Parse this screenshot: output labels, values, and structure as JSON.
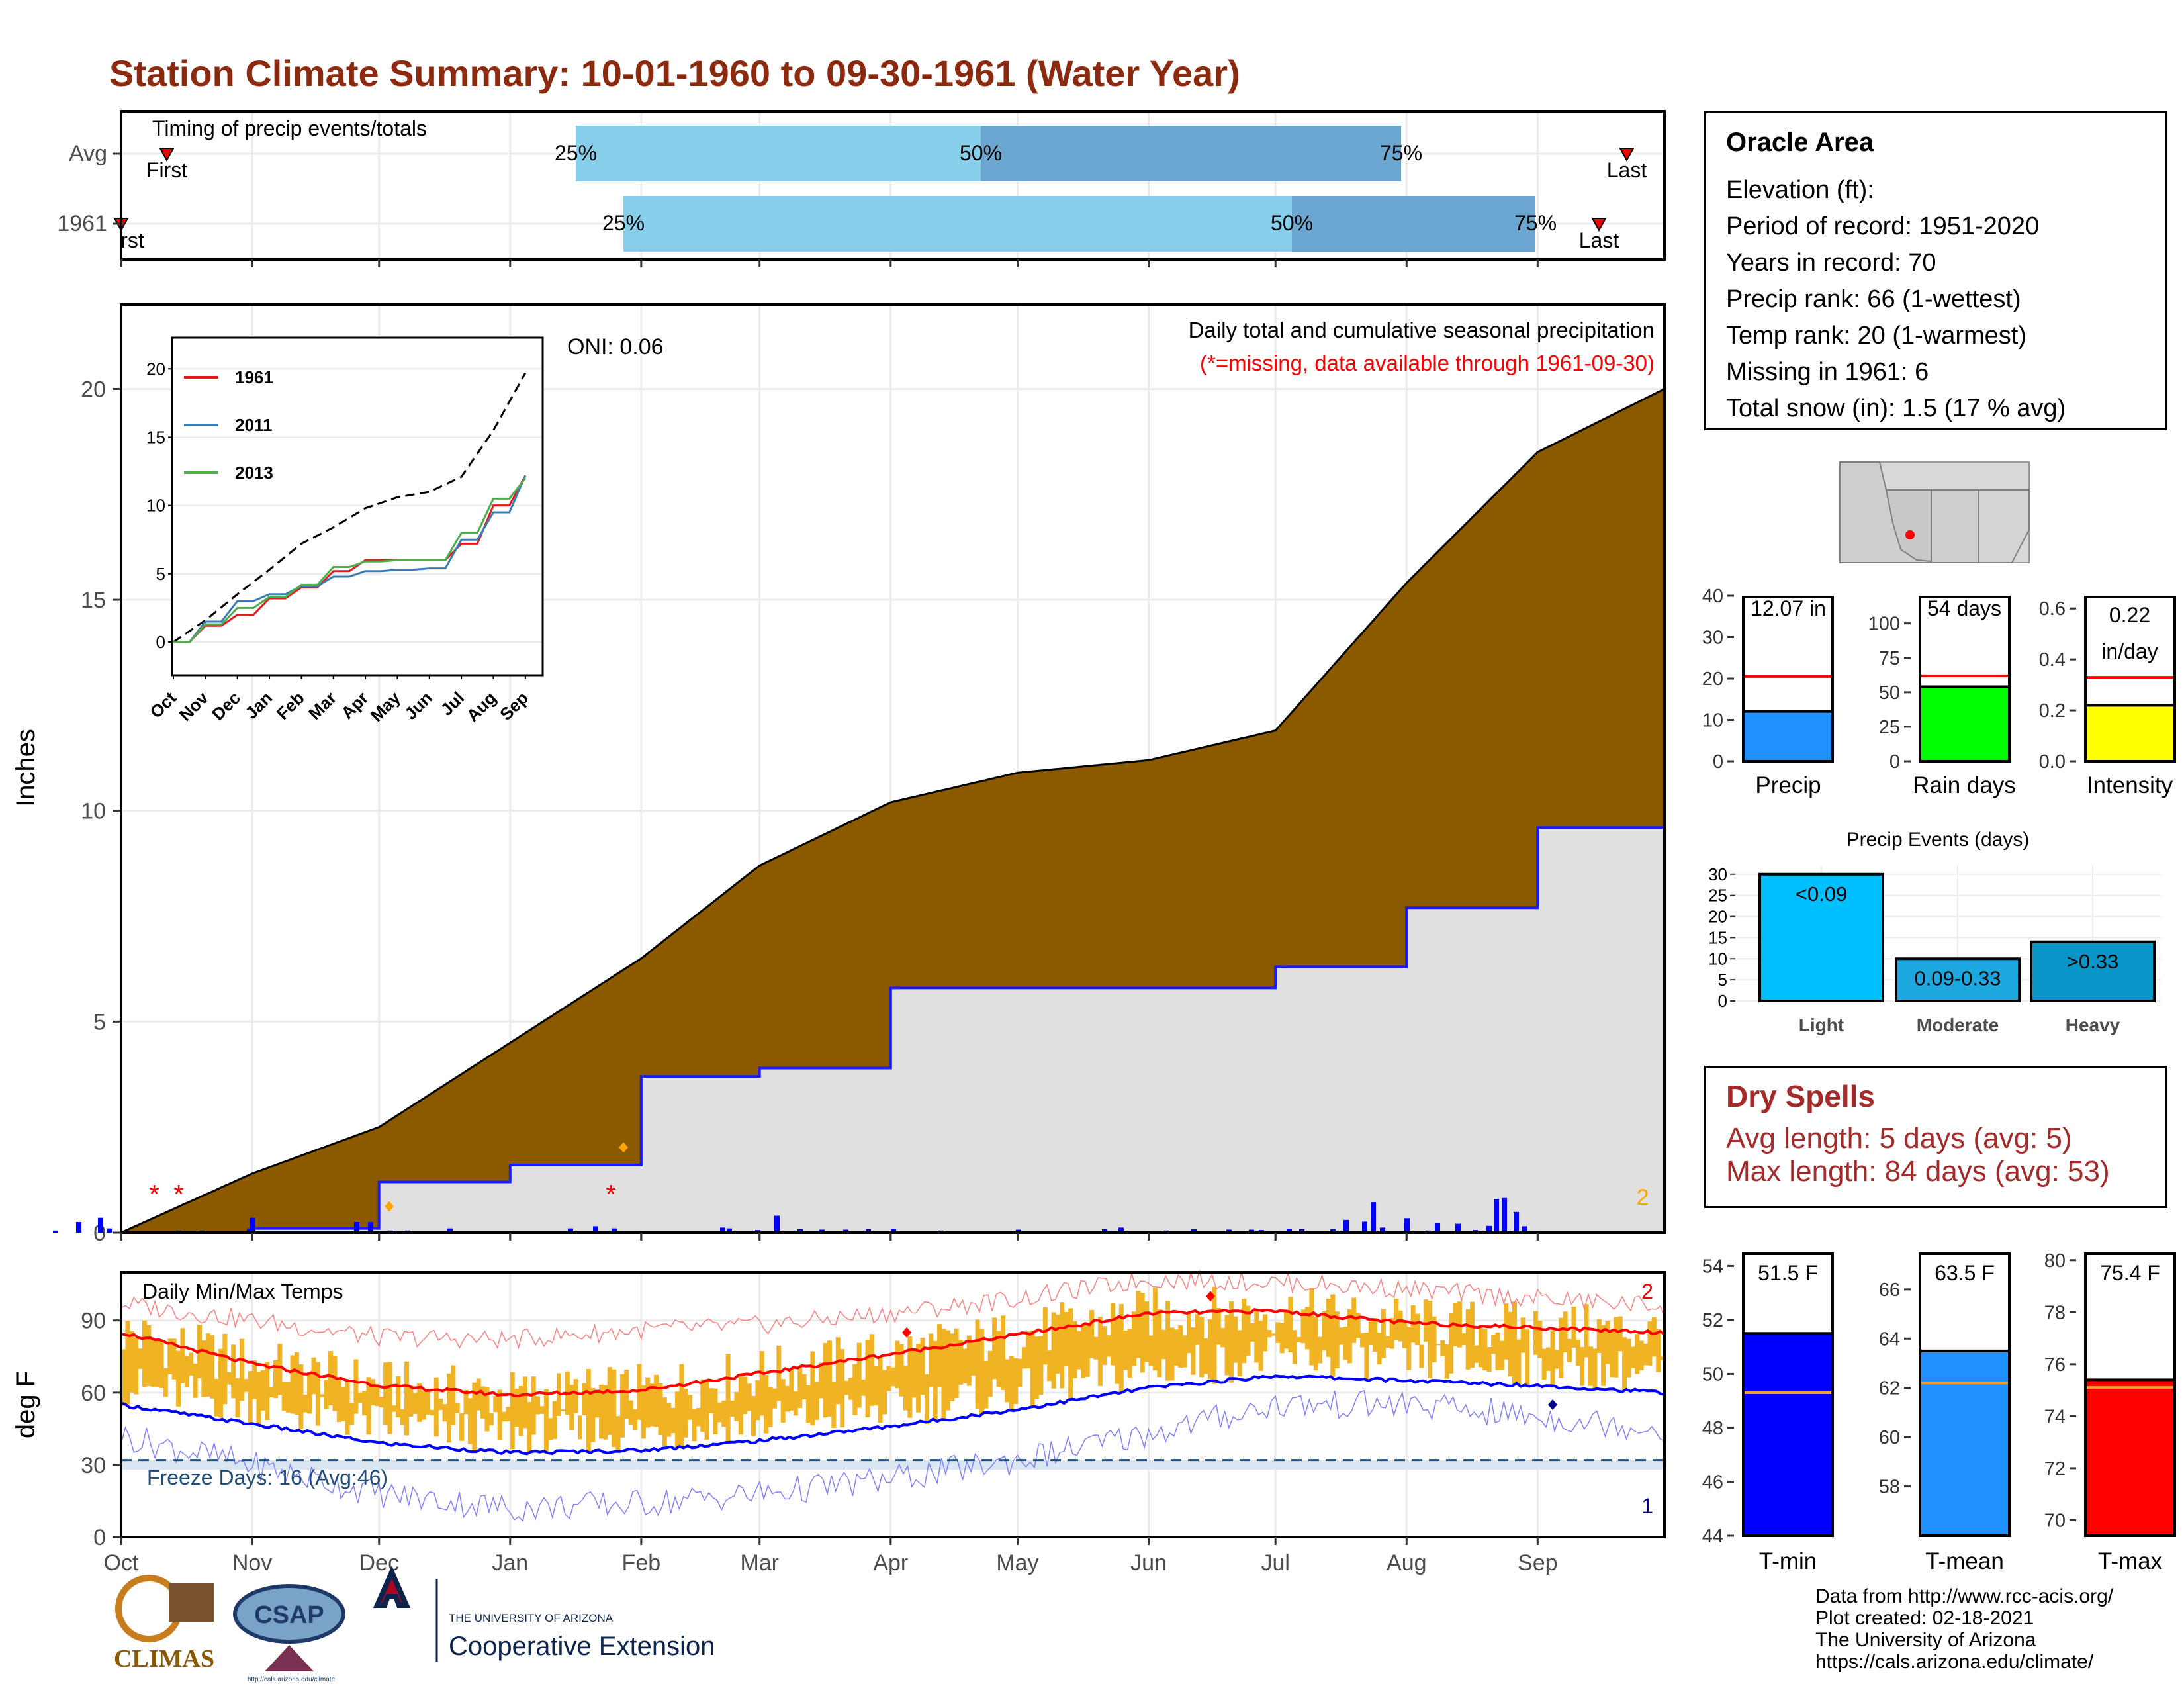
{
  "header": {
    "title": "Station Climate Summary: 10-01-1960 to 09-30-1961 (Water Year)"
  },
  "colors": {
    "title": "#8b2a0e",
    "cum_fill": "#8b5a00",
    "avg_cum_line": "#1a1aff",
    "light_fill": "#e0e0e0",
    "tmax_line": "#ff0000",
    "tmin_line": "#0000ff",
    "bars": "#f0b323",
    "dry_spell_text": "#a52a2a"
  },
  "timing_panel": {
    "title": "Timing of precip events/totals",
    "rows": [
      "Avg",
      "1961"
    ],
    "avg": {
      "first": "First",
      "last": "Last",
      "p25": "25%",
      "p50": "50%",
      "p75": "75%"
    },
    "year": {
      "first": "rst",
      "last": "Last",
      "p25": "25%",
      "p50": "50%",
      "p75": "75%"
    }
  },
  "precip_panel": {
    "ylabel": "Inches",
    "yticks": [
      "0",
      "5",
      "10",
      "15",
      "20"
    ],
    "oni": "ONI: 0.06",
    "caption": "Daily total and cumulative seasonal precipitation",
    "missing_note": "(*=missing, data available through 1961-09-30)",
    "corner_count": "2"
  },
  "inset": {
    "legend": [
      "1961",
      "2011",
      "2013"
    ],
    "yticks": [
      "0",
      "5",
      "10",
      "15",
      "20"
    ],
    "xticks": [
      "Oct",
      "Nov",
      "Dec",
      "Jan",
      "Feb",
      "Mar",
      "Apr",
      "May",
      "Jun",
      "Jul",
      "Aug",
      "Sep"
    ]
  },
  "temp_panel": {
    "ylabel": "deg F",
    "title": "Daily Min/Max Temps",
    "yticks": [
      "0",
      "30",
      "60",
      "90"
    ],
    "freeze": "Freeze Days: 16 (Avg:46)",
    "count_top": "2",
    "count_bottom": "1"
  },
  "months": [
    "Oct",
    "Nov",
    "Dec",
    "Jan",
    "Feb",
    "Mar",
    "Apr",
    "May",
    "Jun",
    "Jul",
    "Aug",
    "Sep"
  ],
  "station": {
    "name": "Oracle Area",
    "lines": [
      "Elevation (ft):",
      "Period of record: 1951-2020",
      "Years in record: 70",
      "Precip rank: 66 (1-wettest)",
      "Temp rank: 20 (1-warmest)",
      "Missing in 1961: 6",
      "Total snow (in): 1.5 (17 % avg)"
    ]
  },
  "mini_bars": {
    "precip": {
      "label": "Precip",
      "value_text": "12.07 in",
      "value": 12.07,
      "avg": 20.5,
      "ymax": 40,
      "ticks": [
        "0",
        "10",
        "20",
        "30",
        "40"
      ],
      "color": "#1e90ff"
    },
    "rain_days": {
      "label": "Rain days",
      "value_text": "54 days",
      "value": 54,
      "avg": 62,
      "ymax": 120,
      "ticks": [
        "0",
        "25",
        "50",
        "75",
        "100"
      ],
      "color": "#00ff00"
    },
    "intensity": {
      "label": "Intensity",
      "value_text": "0.22",
      "value_text2": "in/day",
      "value": 0.22,
      "avg": 0.33,
      "ymax": 0.65,
      "ticks": [
        "0.0",
        "0.2",
        "0.4",
        "0.6"
      ],
      "color": "#ffff00"
    }
  },
  "events": {
    "title": "Precip Events (days)",
    "ticks": [
      "0",
      "5",
      "10",
      "15",
      "20",
      "25",
      "30"
    ],
    "categories": [
      "Light",
      "Moderate",
      "Heavy"
    ],
    "bar_labels": [
      "<0.09",
      "0.09-0.33",
      ">0.33"
    ],
    "values": [
      30,
      10,
      14
    ],
    "colors": [
      "#00bfff",
      "#1ea8e0",
      "#0a95c8"
    ]
  },
  "dry_spells": {
    "title": "Dry Spells",
    "avg_length": "Avg length: 5 days (avg: 5)",
    "max_length": "Max length: 84 days (avg: 53)"
  },
  "temp_bars": {
    "tmin": {
      "label": "T-min",
      "value_text": "51.5 F",
      "value": 51.5,
      "avg": 49.3,
      "ymin": 44,
      "ymax": 54.5,
      "ticks": [
        "44",
        "46",
        "48",
        "50",
        "52",
        "54"
      ],
      "color": "#0000ff"
    },
    "tmean": {
      "label": "T-mean",
      "value_text": "63.5 F",
      "value": 63.5,
      "avg": 62.2,
      "ymin": 56,
      "ymax": 67.5,
      "ticks": [
        "58",
        "60",
        "62",
        "64",
        "66"
      ],
      "color": "#1e90ff"
    },
    "tmax": {
      "label": "T-max",
      "value_text": "75.4 F",
      "value": 75.4,
      "avg": 75.1,
      "ymin": 69.4,
      "ymax": 80.3,
      "ticks": [
        "70",
        "72",
        "74",
        "76",
        "78",
        "80"
      ],
      "color": "#ff0000"
    }
  },
  "logos": {
    "climas": "CLIMAS",
    "csap": "CSAP",
    "csap_url": "http://cals.arizona.edu/climate",
    "ua_top": "THE UNIVERSITY OF ARIZONA",
    "ua_bottom": "Cooperative Extension"
  },
  "credits": [
    "Data from http://www.rcc-acis.org/",
    "Plot created: 02-18-2021",
    "The University of Arizona",
    "https://cals.arizona.edu/climate/"
  ],
  "chart_data": [
    {
      "type": "area",
      "title": "Daily total and cumulative seasonal precipitation",
      "ylabel": "Inches",
      "ylim": [
        0,
        22
      ],
      "x": [
        "Oct",
        "Nov",
        "Dec",
        "Jan",
        "Feb",
        "Mar",
        "Apr",
        "May",
        "Jun",
        "Jul",
        "Aug",
        "Sep",
        "Sep-30"
      ],
      "series": [
        {
          "values": [
            0.0,
            1.4,
            2.5,
            4.5,
            6.5,
            8.7,
            10.2,
            10.9,
            11.2,
            11.9,
            15.4,
            18.5,
            20.0
          ]
        },
        {
          "values": [
            0.0,
            0.1,
            1.2,
            1.6,
            3.7,
            3.9,
            5.8,
            5.8,
            5.8,
            6.3,
            7.7,
            9.6,
            12.07
          ]
        }
      ]
    },
    {
      "type": "line",
      "ylim": [
        0,
        22
      ],
      "x": [
        "Oct",
        "Nov",
        "Dec",
        "Jan",
        "Feb",
        "Mar",
        "Apr",
        "May",
        "Jun",
        "Jul",
        "Aug",
        "Sep"
      ],
      "series": [
        {
          "values": [
            0,
            1.6,
            3.5,
            5.3,
            7.2,
            8.4,
            9.8,
            10.6,
            11.0,
            12.1,
            15.5,
            19.7
          ]
        },
        {
          "name": "1961",
          "values": [
            0,
            1.2,
            2.0,
            3.2,
            4.0,
            5.2,
            6.0,
            6.0,
            6.0,
            7.2,
            10.0,
            12.2
          ]
        },
        {
          "name": "2011",
          "values": [
            0,
            1.5,
            3.0,
            3.5,
            4.1,
            4.8,
            5.2,
            5.3,
            5.4,
            7.5,
            9.5,
            12.2
          ]
        },
        {
          "name": "2013",
          "values": [
            0,
            1.3,
            2.5,
            3.3,
            4.2,
            5.5,
            5.9,
            6.0,
            6.0,
            8.0,
            10.5,
            12.0
          ]
        }
      ]
    },
    {
      "type": "line",
      "title": "Daily Min/Max Temps",
      "ylabel": "deg F",
      "ylim": [
        0,
        110
      ],
      "x": [
        "Oct",
        "Nov",
        "Dec",
        "Jan",
        "Feb",
        "Mar",
        "Apr",
        "May",
        "Jun",
        "Jul",
        "Aug",
        "Sep",
        "Sep-30"
      ],
      "series": [
        {
          "values": [
            85,
            72,
            63,
            59,
            61,
            68,
            76,
            84,
            93,
            94,
            89,
            87,
            85
          ]
        },
        {
          "values": [
            55,
            47,
            39,
            35,
            36,
            40,
            46,
            53,
            62,
            67,
            65,
            63,
            60
          ]
        },
        {
          "values": [
            97,
            90,
            83,
            82,
            86,
            88,
            93,
            99,
            107,
            106,
            103,
            99,
            96
          ]
        },
        {
          "values": [
            42,
            30,
            18,
            12,
            14,
            18,
            24,
            32,
            43,
            55,
            55,
            50,
            45
          ]
        }
      ]
    }
  ]
}
